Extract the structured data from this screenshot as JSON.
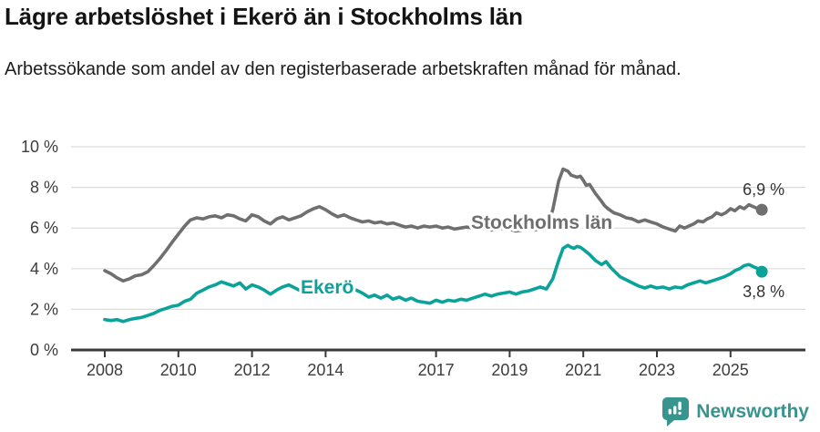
{
  "header": {
    "title": "Lägre arbetslöshet i Ekerö än i Stockholms län",
    "subtitle": "Arbetssökande som andel av den registerbaserade arbetskraften månad för månad."
  },
  "footer": {
    "brand": "Newsworthy",
    "brand_color": "#38948e",
    "logo_icon": "newsworthy-speech-bubble-bar-chart-icon"
  },
  "chart_data": {
    "type": "line",
    "title": "Lägre arbetslöshet i Ekerö än i Stockholms län",
    "subtitle": "Arbetssökande som andel av den registerbaserade arbetskraften månad för månad.",
    "unit": "%",
    "grid": true,
    "legend": "inline-labels",
    "ylim": [
      0,
      10
    ],
    "xlim": [
      2007.1,
      2027.0
    ],
    "y_ticks": [
      {
        "value": 0,
        "label": "0 %"
      },
      {
        "value": 2,
        "label": "2 %"
      },
      {
        "value": 4,
        "label": "4 %"
      },
      {
        "value": 6,
        "label": "6 %"
      },
      {
        "value": 8,
        "label": "8 %"
      },
      {
        "value": 10,
        "label": "10 %"
      }
    ],
    "x_ticks": [
      {
        "value": 2008,
        "label": "2008"
      },
      {
        "value": 2010,
        "label": "2010"
      },
      {
        "value": 2012,
        "label": "2012"
      },
      {
        "value": 2014,
        "label": "2014"
      },
      {
        "value": 2017,
        "label": "2017"
      },
      {
        "value": 2019,
        "label": "2019"
      },
      {
        "value": 2021,
        "label": "2021"
      },
      {
        "value": 2023,
        "label": "2023"
      },
      {
        "value": 2025,
        "label": "2025"
      }
    ],
    "style": {
      "grid_color": "#dcdcdc",
      "axis_color": "#3a3a3a",
      "tick_label_color": "#3d3d3d",
      "value_label_color": "#333333",
      "background": "#ffffff"
    },
    "series": [
      {
        "name": "Stockholms län",
        "color": "#6f6f6f",
        "end_value": 6.9,
        "end_label": "6,9 %",
        "points": [
          [
            2008.0,
            3.9
          ],
          [
            2008.17,
            3.75
          ],
          [
            2008.33,
            3.55
          ],
          [
            2008.5,
            3.4
          ],
          [
            2008.67,
            3.5
          ],
          [
            2008.83,
            3.65
          ],
          [
            2009.0,
            3.7
          ],
          [
            2009.17,
            3.85
          ],
          [
            2009.33,
            4.15
          ],
          [
            2009.5,
            4.5
          ],
          [
            2009.67,
            4.9
          ],
          [
            2009.83,
            5.3
          ],
          [
            2010.0,
            5.7
          ],
          [
            2010.17,
            6.1
          ],
          [
            2010.33,
            6.4
          ],
          [
            2010.5,
            6.5
          ],
          [
            2010.67,
            6.45
          ],
          [
            2010.83,
            6.55
          ],
          [
            2011.0,
            6.6
          ],
          [
            2011.17,
            6.5
          ],
          [
            2011.33,
            6.65
          ],
          [
            2011.5,
            6.6
          ],
          [
            2011.67,
            6.45
          ],
          [
            2011.83,
            6.35
          ],
          [
            2012.0,
            6.65
          ],
          [
            2012.17,
            6.55
          ],
          [
            2012.33,
            6.35
          ],
          [
            2012.5,
            6.2
          ],
          [
            2012.67,
            6.45
          ],
          [
            2012.83,
            6.55
          ],
          [
            2013.0,
            6.4
          ],
          [
            2013.17,
            6.5
          ],
          [
            2013.33,
            6.6
          ],
          [
            2013.5,
            6.8
          ],
          [
            2013.67,
            6.95
          ],
          [
            2013.83,
            7.05
          ],
          [
            2014.0,
            6.9
          ],
          [
            2014.17,
            6.7
          ],
          [
            2014.33,
            6.55
          ],
          [
            2014.5,
            6.65
          ],
          [
            2014.67,
            6.5
          ],
          [
            2014.83,
            6.4
          ],
          [
            2015.0,
            6.3
          ],
          [
            2015.17,
            6.35
          ],
          [
            2015.33,
            6.25
          ],
          [
            2015.5,
            6.3
          ],
          [
            2015.67,
            6.2
          ],
          [
            2015.83,
            6.25
          ],
          [
            2016.0,
            6.15
          ],
          [
            2016.17,
            6.05
          ],
          [
            2016.33,
            6.1
          ],
          [
            2016.5,
            6.0
          ],
          [
            2016.67,
            6.1
          ],
          [
            2016.83,
            6.05
          ],
          [
            2017.0,
            6.1
          ],
          [
            2017.17,
            6.0
          ],
          [
            2017.33,
            6.05
          ],
          [
            2017.5,
            5.95
          ],
          [
            2017.67,
            6.0
          ],
          [
            2017.83,
            6.05
          ],
          [
            2018.0,
            6.0
          ],
          [
            2018.17,
            5.95
          ],
          [
            2018.33,
            6.0
          ],
          [
            2018.5,
            5.9
          ],
          [
            2018.67,
            5.95
          ],
          [
            2018.83,
            6.0
          ],
          [
            2019.0,
            5.95
          ],
          [
            2019.17,
            5.85
          ],
          [
            2019.33,
            5.9
          ],
          [
            2019.5,
            5.95
          ],
          [
            2019.67,
            5.9
          ],
          [
            2019.83,
            5.95
          ],
          [
            2020.0,
            6.0
          ],
          [
            2020.17,
            6.9
          ],
          [
            2020.33,
            8.3
          ],
          [
            2020.45,
            8.9
          ],
          [
            2020.58,
            8.8
          ],
          [
            2020.67,
            8.6
          ],
          [
            2020.83,
            8.5
          ],
          [
            2020.92,
            8.55
          ],
          [
            2021.0,
            8.35
          ],
          [
            2021.08,
            8.1
          ],
          [
            2021.17,
            8.15
          ],
          [
            2021.33,
            7.7
          ],
          [
            2021.5,
            7.3
          ],
          [
            2021.58,
            7.1
          ],
          [
            2021.67,
            6.95
          ],
          [
            2021.83,
            6.75
          ],
          [
            2022.0,
            6.65
          ],
          [
            2022.17,
            6.5
          ],
          [
            2022.33,
            6.45
          ],
          [
            2022.5,
            6.3
          ],
          [
            2022.67,
            6.4
          ],
          [
            2022.83,
            6.3
          ],
          [
            2023.0,
            6.2
          ],
          [
            2023.17,
            6.05
          ],
          [
            2023.33,
            5.95
          ],
          [
            2023.5,
            5.85
          ],
          [
            2023.62,
            6.1
          ],
          [
            2023.75,
            6.0
          ],
          [
            2023.87,
            6.1
          ],
          [
            2024.0,
            6.2
          ],
          [
            2024.12,
            6.35
          ],
          [
            2024.25,
            6.3
          ],
          [
            2024.37,
            6.45
          ],
          [
            2024.5,
            6.55
          ],
          [
            2024.62,
            6.75
          ],
          [
            2024.75,
            6.65
          ],
          [
            2024.87,
            6.75
          ],
          [
            2025.0,
            6.95
          ],
          [
            2025.12,
            6.85
          ],
          [
            2025.25,
            7.05
          ],
          [
            2025.37,
            6.95
          ],
          [
            2025.5,
            7.15
          ],
          [
            2025.62,
            7.05
          ],
          [
            2025.75,
            6.95
          ],
          [
            2025.85,
            6.9
          ]
        ]
      },
      {
        "name": "Ekerö",
        "color": "#0ba29a",
        "end_value": 3.8,
        "end_label": "3,8 %",
        "points": [
          [
            2008.0,
            1.5
          ],
          [
            2008.17,
            1.45
          ],
          [
            2008.33,
            1.5
          ],
          [
            2008.5,
            1.4
          ],
          [
            2008.67,
            1.5
          ],
          [
            2008.83,
            1.55
          ],
          [
            2009.0,
            1.6
          ],
          [
            2009.17,
            1.7
          ],
          [
            2009.33,
            1.8
          ],
          [
            2009.5,
            1.95
          ],
          [
            2009.67,
            2.05
          ],
          [
            2009.83,
            2.15
          ],
          [
            2010.0,
            2.2
          ],
          [
            2010.17,
            2.4
          ],
          [
            2010.33,
            2.5
          ],
          [
            2010.5,
            2.8
          ],
          [
            2010.67,
            2.95
          ],
          [
            2010.83,
            3.1
          ],
          [
            2011.0,
            3.2
          ],
          [
            2011.17,
            3.35
          ],
          [
            2011.33,
            3.25
          ],
          [
            2011.5,
            3.15
          ],
          [
            2011.67,
            3.3
          ],
          [
            2011.83,
            3.0
          ],
          [
            2012.0,
            3.2
          ],
          [
            2012.17,
            3.1
          ],
          [
            2012.33,
            2.95
          ],
          [
            2012.5,
            2.75
          ],
          [
            2012.67,
            2.95
          ],
          [
            2012.83,
            3.1
          ],
          [
            2013.0,
            3.2
          ],
          [
            2013.17,
            3.05
          ],
          [
            2013.33,
            2.9
          ],
          [
            2013.5,
            3.1
          ],
          [
            2013.67,
            3.25
          ],
          [
            2013.83,
            3.3
          ],
          [
            2014.0,
            3.2
          ],
          [
            2014.17,
            3.3
          ],
          [
            2014.33,
            3.25
          ],
          [
            2014.5,
            3.1
          ],
          [
            2014.67,
            3.0
          ],
          [
            2014.83,
            2.95
          ],
          [
            2015.0,
            2.8
          ],
          [
            2015.17,
            2.6
          ],
          [
            2015.33,
            2.7
          ],
          [
            2015.5,
            2.55
          ],
          [
            2015.67,
            2.7
          ],
          [
            2015.83,
            2.5
          ],
          [
            2016.0,
            2.6
          ],
          [
            2016.17,
            2.45
          ],
          [
            2016.33,
            2.55
          ],
          [
            2016.5,
            2.4
          ],
          [
            2016.67,
            2.35
          ],
          [
            2016.83,
            2.3
          ],
          [
            2017.0,
            2.45
          ],
          [
            2017.17,
            2.35
          ],
          [
            2017.33,
            2.45
          ],
          [
            2017.5,
            2.4
          ],
          [
            2017.67,
            2.5
          ],
          [
            2017.83,
            2.45
          ],
          [
            2018.0,
            2.55
          ],
          [
            2018.17,
            2.65
          ],
          [
            2018.33,
            2.75
          ],
          [
            2018.5,
            2.65
          ],
          [
            2018.67,
            2.75
          ],
          [
            2018.83,
            2.8
          ],
          [
            2019.0,
            2.85
          ],
          [
            2019.17,
            2.75
          ],
          [
            2019.33,
            2.85
          ],
          [
            2019.5,
            2.9
          ],
          [
            2019.67,
            3.0
          ],
          [
            2019.83,
            3.1
          ],
          [
            2020.0,
            3.0
          ],
          [
            2020.17,
            3.5
          ],
          [
            2020.33,
            4.4
          ],
          [
            2020.45,
            5.0
          ],
          [
            2020.58,
            5.15
          ],
          [
            2020.67,
            5.05
          ],
          [
            2020.75,
            5.0
          ],
          [
            2020.83,
            5.1
          ],
          [
            2020.92,
            5.05
          ],
          [
            2021.0,
            4.95
          ],
          [
            2021.17,
            4.7
          ],
          [
            2021.33,
            4.4
          ],
          [
            2021.5,
            4.2
          ],
          [
            2021.62,
            4.35
          ],
          [
            2021.75,
            4.05
          ],
          [
            2021.83,
            3.9
          ],
          [
            2022.0,
            3.6
          ],
          [
            2022.17,
            3.45
          ],
          [
            2022.33,
            3.3
          ],
          [
            2022.5,
            3.15
          ],
          [
            2022.67,
            3.05
          ],
          [
            2022.83,
            3.15
          ],
          [
            2023.0,
            3.05
          ],
          [
            2023.17,
            3.1
          ],
          [
            2023.33,
            3.0
          ],
          [
            2023.5,
            3.1
          ],
          [
            2023.67,
            3.05
          ],
          [
            2023.83,
            3.2
          ],
          [
            2024.0,
            3.3
          ],
          [
            2024.17,
            3.4
          ],
          [
            2024.33,
            3.3
          ],
          [
            2024.5,
            3.4
          ],
          [
            2024.67,
            3.5
          ],
          [
            2024.83,
            3.6
          ],
          [
            2025.0,
            3.75
          ],
          [
            2025.12,
            3.9
          ],
          [
            2025.25,
            4.0
          ],
          [
            2025.37,
            4.15
          ],
          [
            2025.5,
            4.2
          ],
          [
            2025.62,
            4.1
          ],
          [
            2025.75,
            4.0
          ],
          [
            2025.85,
            3.85
          ]
        ]
      }
    ]
  }
}
